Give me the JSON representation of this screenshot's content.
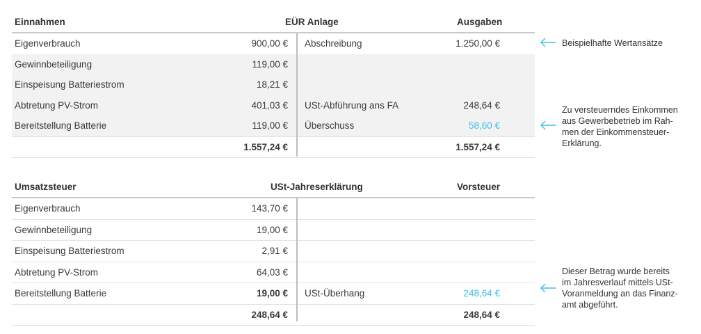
{
  "eur": {
    "headers": {
      "left": "Einnahmen",
      "center": "EÜR Anlage",
      "right": "Ausgaben"
    },
    "rows": [
      {
        "label": "Eigenverbrauch",
        "value": "900,00 €",
        "right_label": "Abschreibung",
        "right_value": "1.250,00 €"
      },
      {
        "label": "Gewinnbeteiligung",
        "value": "119,00 €",
        "right_label": "",
        "right_value": ""
      },
      {
        "label": "Einspeisung Batteriestrom",
        "value": "18,21 €",
        "right_label": "",
        "right_value": ""
      },
      {
        "label": "Abtretung PV-Strom",
        "value": "401,03 €",
        "right_label": "USt-Abführung ans FA",
        "right_value": "248,64 €"
      },
      {
        "label": "Bereitstellung Batterie",
        "value": "119,00 €",
        "right_label": "Überschuss",
        "right_value": "58,60 €"
      }
    ],
    "total_left": "1.557,24 €",
    "total_right": "1.557,24 €"
  },
  "ust": {
    "headers": {
      "left": "Umsatzsteuer",
      "center": "USt-Jahreserklärung",
      "right": "Vorsteuer"
    },
    "rows": [
      {
        "label": "Eigenverbrauch",
        "value": "143,70 €",
        "right_label": "",
        "right_value": ""
      },
      {
        "label": "Gewinnbeteiligung",
        "value": "19,00 €",
        "right_label": "",
        "right_value": ""
      },
      {
        "label": "Einspeisung Batteriestrom",
        "value": "2,91 €",
        "right_label": "",
        "right_value": ""
      },
      {
        "label": "Abtretung PV-Strom",
        "value": "64,03 €",
        "right_label": "",
        "right_value": ""
      },
      {
        "label": "Bereitstellung Batterie",
        "value": "19,00 €",
        "right_label": "USt-Überhang",
        "right_value": "248,64 €"
      }
    ],
    "total_left": "248,64 €",
    "total_right": "248,64 €"
  },
  "notes": {
    "note1": "Beispielhafte Wertansätze",
    "note2_lines": [
      "Zu versteuerndes Einkommen",
      "aus Gewerbebetrieb im Rah-",
      "men der Einkommensteuer-",
      "Erklärung."
    ],
    "note3_lines": [
      "Dieser Betrag wurde bereits",
      "im Jahresverlauf mittels USt-",
      "Voranmeldung an das Finanz-",
      "amt abgeführt."
    ]
  },
  "colors": {
    "highlight": "#3cc0e6",
    "arrow": "#3cc0e6"
  },
  "icons": [
    "arrow-left-icon"
  ]
}
